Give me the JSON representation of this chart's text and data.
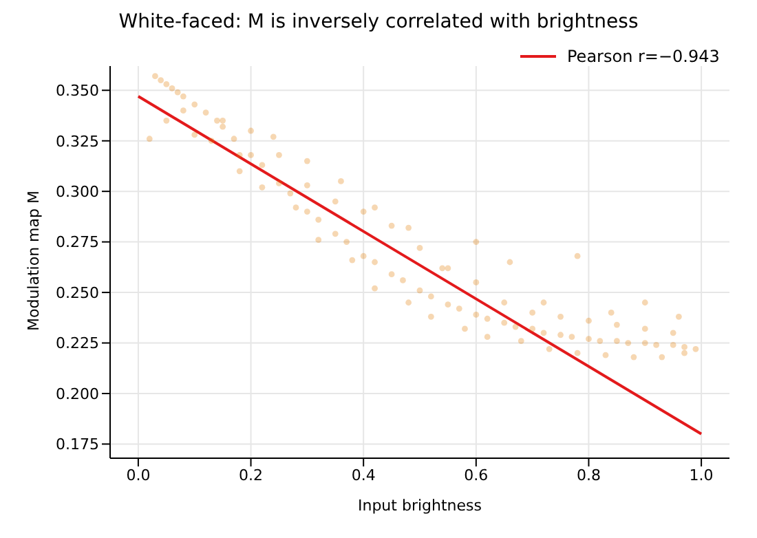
{
  "chart_data": {
    "type": "scatter",
    "title": "White-faced: M is inversely correlated with brightness",
    "xlabel": "Input brightness",
    "ylabel": "Modulation map M",
    "xlim": [
      -0.05,
      1.05
    ],
    "ylim": [
      0.168,
      0.362
    ],
    "xticks": [
      {
        "value": 0,
        "label": "0.0"
      },
      {
        "value": 0.2,
        "label": "0.2"
      },
      {
        "value": 0.4,
        "label": "0.4"
      },
      {
        "value": 0.6,
        "label": "0.6"
      },
      {
        "value": 0.8,
        "label": "0.8"
      },
      {
        "value": 1,
        "label": "1.0"
      }
    ],
    "yticks": [
      0.175,
      {
        "value": 0.2,
        "label": "0.200"
      },
      0.225,
      {
        "value": 0.25,
        "label": "0.250"
      },
      0.275,
      {
        "value": 0.3,
        "label": "0.300"
      },
      0.325,
      {
        "value": 0.35,
        "label": "0.350"
      }
    ],
    "grid": true,
    "legend": "top right",
    "series": [
      {
        "marker": "circle",
        "color": "#e07b00",
        "x": [
          0.03,
          0.04,
          0.05,
          0.06,
          0.07,
          0.08,
          0.1,
          0.12,
          0.14,
          0.15,
          0.17,
          0.2,
          0.22,
          0.25,
          0.27,
          0.3,
          0.32,
          0.35,
          0.37,
          0.4,
          0.42,
          0.45,
          0.47,
          0.5,
          0.52,
          0.55,
          0.57,
          0.6,
          0.62,
          0.65,
          0.67,
          0.7,
          0.72,
          0.75,
          0.77,
          0.8,
          0.82,
          0.85,
          0.87,
          0.9,
          0.92,
          0.95,
          0.97,
          0.99,
          0.02,
          0.05,
          0.08,
          0.1,
          0.13,
          0.15,
          0.18,
          0.2,
          0.22,
          0.25,
          0.28,
          0.3,
          0.32,
          0.35,
          0.38,
          0.4,
          0.42,
          0.45,
          0.48,
          0.5,
          0.52,
          0.55,
          0.58,
          0.6,
          0.62,
          0.65,
          0.68,
          0.7,
          0.73,
          0.75,
          0.78,
          0.8,
          0.83,
          0.85,
          0.88,
          0.9,
          0.93,
          0.95,
          0.97,
          0.18,
          0.24,
          0.3,
          0.36,
          0.42,
          0.48,
          0.54,
          0.6,
          0.66,
          0.72,
          0.78,
          0.84,
          0.9,
          0.96
        ],
        "values": [
          0.357,
          0.355,
          0.353,
          0.351,
          0.349,
          0.347,
          0.343,
          0.339,
          0.335,
          0.332,
          0.326,
          0.318,
          0.313,
          0.304,
          0.299,
          0.29,
          0.286,
          0.279,
          0.275,
          0.268,
          0.265,
          0.259,
          0.256,
          0.251,
          0.248,
          0.244,
          0.242,
          0.239,
          0.237,
          0.235,
          0.233,
          0.232,
          0.23,
          0.229,
          0.228,
          0.227,
          0.226,
          0.226,
          0.225,
          0.225,
          0.224,
          0.224,
          0.223,
          0.222,
          0.326,
          0.335,
          0.34,
          0.328,
          0.325,
          0.335,
          0.318,
          0.33,
          0.302,
          0.318,
          0.292,
          0.303,
          0.276,
          0.295,
          0.266,
          0.29,
          0.252,
          0.283,
          0.245,
          0.272,
          0.238,
          0.262,
          0.232,
          0.255,
          0.228,
          0.245,
          0.226,
          0.24,
          0.222,
          0.238,
          0.22,
          0.236,
          0.219,
          0.234,
          0.218,
          0.232,
          0.218,
          0.23,
          0.22,
          0.31,
          0.327,
          0.315,
          0.305,
          0.292,
          0.282,
          0.262,
          0.275,
          0.265,
          0.245,
          0.268,
          0.24,
          0.245,
          0.238
        ]
      },
      {
        "type": "line",
        "name": "Pearson r=−0.943",
        "color": "#e31a1c",
        "marker": "none",
        "x": [
          0,
          1
        ],
        "values": [
          0.347,
          0.18
        ]
      }
    ]
  }
}
